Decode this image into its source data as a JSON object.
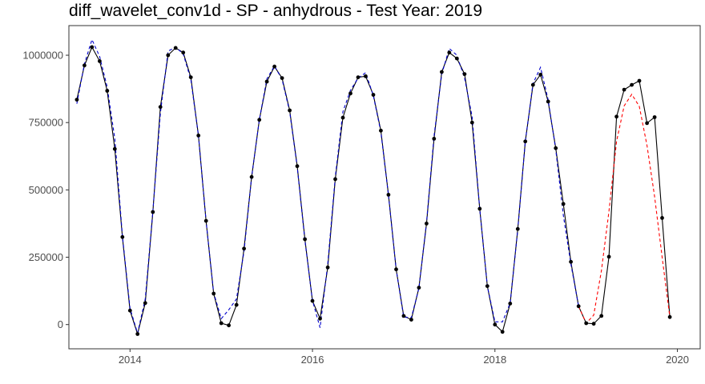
{
  "chart_data": {
    "type": "line",
    "title": "diff_wavelet_conv1d - SP - anhydrous - Test Year: 2019",
    "xlabel": "",
    "ylabel": "",
    "xlim": [
      2013.33,
      2020.25
    ],
    "ylim": [
      -90000,
      1110000
    ],
    "x_ticks": [
      2014,
      2016,
      2018,
      2020
    ],
    "x_tick_labels": [
      "2014",
      "2016",
      "2018",
      "2020"
    ],
    "y_ticks": [
      0,
      250000,
      500000,
      750000,
      1000000
    ],
    "y_tick_labels": [
      "0",
      "250000",
      "500000",
      "750000",
      "1000000"
    ],
    "grid": false,
    "legend": "none",
    "series": [
      {
        "style": "solid",
        "color": "#000000",
        "markers": true,
        "points": [
          [
            2013.417,
            835000
          ],
          [
            2013.5,
            962000
          ],
          [
            2013.583,
            1030000
          ],
          [
            2013.667,
            978000
          ],
          [
            2013.75,
            868000
          ],
          [
            2013.833,
            652000
          ],
          [
            2013.917,
            325000
          ],
          [
            2014.0,
            52000
          ],
          [
            2014.083,
            -35000
          ],
          [
            2014.167,
            80000
          ],
          [
            2014.25,
            418000
          ],
          [
            2014.333,
            808000
          ],
          [
            2014.417,
            1000000
          ],
          [
            2014.5,
            1027000
          ],
          [
            2014.583,
            1010000
          ],
          [
            2014.667,
            918000
          ],
          [
            2014.75,
            702000
          ],
          [
            2014.833,
            385000
          ],
          [
            2014.917,
            115000
          ],
          [
            2015.0,
            5000
          ],
          [
            2015.083,
            -3000
          ],
          [
            2015.167,
            73000
          ],
          [
            2015.25,
            282000
          ],
          [
            2015.333,
            548000
          ],
          [
            2015.417,
            760000
          ],
          [
            2015.5,
            902000
          ],
          [
            2015.583,
            958000
          ],
          [
            2015.667,
            915000
          ],
          [
            2015.75,
            795000
          ],
          [
            2015.833,
            588000
          ],
          [
            2015.917,
            317000
          ],
          [
            2016.0,
            88000
          ],
          [
            2016.083,
            22000
          ],
          [
            2016.167,
            212000
          ],
          [
            2016.25,
            540000
          ],
          [
            2016.333,
            768000
          ],
          [
            2016.417,
            858000
          ],
          [
            2016.5,
            918000
          ],
          [
            2016.583,
            922000
          ],
          [
            2016.667,
            853000
          ],
          [
            2016.75,
            720000
          ],
          [
            2016.833,
            482000
          ],
          [
            2016.917,
            205000
          ],
          [
            2017.0,
            32000
          ],
          [
            2017.083,
            18000
          ],
          [
            2017.167,
            137000
          ],
          [
            2017.25,
            375000
          ],
          [
            2017.333,
            690000
          ],
          [
            2017.417,
            938000
          ],
          [
            2017.5,
            1010000
          ],
          [
            2017.583,
            988000
          ],
          [
            2017.667,
            930000
          ],
          [
            2017.75,
            750000
          ],
          [
            2017.833,
            430000
          ],
          [
            2017.917,
            143000
          ],
          [
            2018.0,
            0
          ],
          [
            2018.083,
            -27000
          ],
          [
            2018.167,
            78000
          ],
          [
            2018.25,
            355000
          ],
          [
            2018.333,
            680000
          ],
          [
            2018.417,
            890000
          ],
          [
            2018.5,
            928000
          ],
          [
            2018.583,
            828000
          ],
          [
            2018.667,
            655000
          ],
          [
            2018.75,
            448000
          ],
          [
            2018.833,
            233000
          ],
          [
            2018.917,
            68000
          ],
          [
            2019.0,
            5000
          ],
          [
            2019.083,
            3000
          ],
          [
            2019.167,
            32000
          ],
          [
            2019.25,
            252000
          ],
          [
            2019.333,
            772000
          ],
          [
            2019.417,
            872000
          ],
          [
            2019.5,
            890000
          ],
          [
            2019.583,
            905000
          ],
          [
            2019.667,
            748000
          ],
          [
            2019.75,
            770000
          ],
          [
            2019.833,
            396000
          ],
          [
            2019.917,
            28000
          ]
        ]
      },
      {
        "style": "dashed",
        "color": "#0000cd",
        "markers": false,
        "points": [
          [
            2013.417,
            820000
          ],
          [
            2013.5,
            968000
          ],
          [
            2013.583,
            1058000
          ],
          [
            2013.667,
            995000
          ],
          [
            2013.75,
            882000
          ],
          [
            2013.833,
            690000
          ],
          [
            2013.917,
            330000
          ],
          [
            2014.0,
            60000
          ],
          [
            2014.083,
            -32000
          ],
          [
            2014.167,
            95000
          ],
          [
            2014.25,
            420000
          ],
          [
            2014.333,
            785000
          ],
          [
            2014.417,
            1015000
          ],
          [
            2014.5,
            1030000
          ],
          [
            2014.583,
            1005000
          ],
          [
            2014.667,
            910000
          ],
          [
            2014.75,
            702000
          ],
          [
            2014.833,
            385000
          ],
          [
            2014.917,
            118000
          ],
          [
            2015.0,
            22000
          ],
          [
            2015.083,
            55000
          ],
          [
            2015.167,
            95000
          ],
          [
            2015.25,
            272000
          ],
          [
            2015.333,
            548000
          ],
          [
            2015.417,
            760000
          ],
          [
            2015.5,
            912000
          ],
          [
            2015.583,
            960000
          ],
          [
            2015.667,
            910000
          ],
          [
            2015.75,
            790000
          ],
          [
            2015.833,
            585000
          ],
          [
            2015.917,
            312000
          ],
          [
            2016.0,
            90000
          ],
          [
            2016.083,
            -12000
          ],
          [
            2016.167,
            225000
          ],
          [
            2016.25,
            548000
          ],
          [
            2016.333,
            790000
          ],
          [
            2016.417,
            870000
          ],
          [
            2016.5,
            915000
          ],
          [
            2016.583,
            935000
          ],
          [
            2016.667,
            850000
          ],
          [
            2016.75,
            715000
          ],
          [
            2016.833,
            480000
          ],
          [
            2016.917,
            205000
          ],
          [
            2017.0,
            28000
          ],
          [
            2017.083,
            25000
          ],
          [
            2017.167,
            135000
          ],
          [
            2017.25,
            380000
          ],
          [
            2017.333,
            700000
          ],
          [
            2017.417,
            930000
          ],
          [
            2017.5,
            1025000
          ],
          [
            2017.583,
            1000000
          ],
          [
            2017.667,
            915000
          ],
          [
            2017.75,
            772000
          ],
          [
            2017.833,
            430000
          ],
          [
            2017.917,
            143000
          ],
          [
            2018.0,
            10000
          ],
          [
            2018.083,
            10000
          ],
          [
            2018.167,
            80000
          ],
          [
            2018.25,
            352000
          ],
          [
            2018.333,
            680000
          ],
          [
            2018.417,
            895000
          ],
          [
            2018.5,
            955000
          ],
          [
            2018.583,
            835000
          ],
          [
            2018.667,
            650000
          ],
          [
            2018.75,
            405000
          ],
          [
            2018.833,
            225000
          ],
          [
            2018.917,
            68000
          ]
        ]
      },
      {
        "style": "dashed",
        "color": "#ff0000",
        "markers": false,
        "points": [
          [
            2018.917,
            68000
          ],
          [
            2019.0,
            5000
          ],
          [
            2019.083,
            35000
          ],
          [
            2019.167,
            200000
          ],
          [
            2019.25,
            420000
          ],
          [
            2019.333,
            680000
          ],
          [
            2019.417,
            812000
          ],
          [
            2019.5,
            855000
          ],
          [
            2019.583,
            810000
          ],
          [
            2019.667,
            665000
          ],
          [
            2019.75,
            475000
          ],
          [
            2019.833,
            250000
          ],
          [
            2019.917,
            28000
          ]
        ]
      }
    ]
  }
}
